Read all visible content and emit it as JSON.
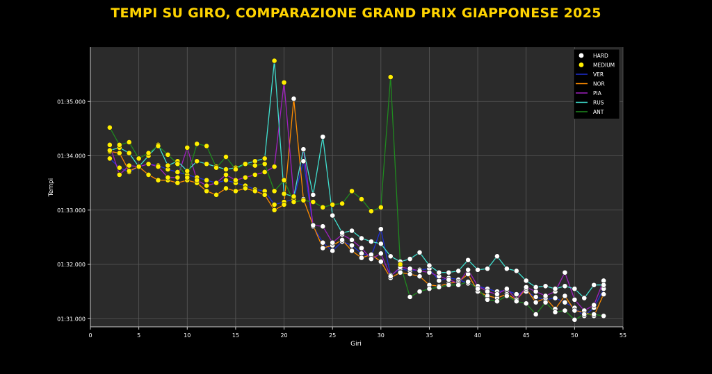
{
  "chart_data": {
    "type": "line",
    "title": "TEMPI SU GIRO, COMPARAZIONE GRAND PRIX GIAPPONESE 2025",
    "xlabel": "Giri",
    "ylabel": "Tempi",
    "xlim": [
      0,
      55
    ],
    "ylim": [
      90.85,
      96.0
    ],
    "xticks": [
      0,
      5,
      10,
      15,
      20,
      25,
      30,
      35,
      40,
      45,
      50,
      55
    ],
    "yticks": [
      {
        "value": 91,
        "label": "01:31.000"
      },
      {
        "value": 92,
        "label": "01:32.000"
      },
      {
        "value": 93,
        "label": "01:33.000"
      },
      {
        "value": 94,
        "label": "01:34.000"
      },
      {
        "value": 95,
        "label": "01:35.000"
      }
    ],
    "grid": true,
    "legend_position": "top-right",
    "legend": [
      {
        "kind": "marker",
        "label": "HARD",
        "color": "#ffffff"
      },
      {
        "kind": "marker",
        "label": "MEDIUM",
        "color": "#ffee00"
      },
      {
        "kind": "line",
        "label": "VER",
        "color": "#1e2fd6"
      },
      {
        "kind": "line",
        "label": "NOR",
        "color": "#ff8c00"
      },
      {
        "kind": "line",
        "label": "PIA",
        "color": "#a020c0"
      },
      {
        "kind": "line",
        "label": "RUS",
        "color": "#40e0d0"
      },
      {
        "kind": "line",
        "label": "ANT",
        "color": "#1f8a1f"
      }
    ],
    "series": [
      {
        "name": "VER",
        "color": "#1e2fd6",
        "hard_from_lap": 22,
        "x": [
          2,
          3,
          4,
          5,
          6,
          7,
          8,
          9,
          10,
          11,
          12,
          13,
          14,
          15,
          16,
          17,
          18,
          19,
          20,
          21,
          22,
          23,
          24,
          25,
          26,
          27,
          28,
          29,
          30,
          31,
          32,
          33,
          34,
          35,
          36,
          37,
          38,
          39,
          40,
          41,
          42,
          43,
          44,
          45,
          46,
          47,
          48,
          49,
          50,
          51,
          52,
          53
        ],
        "y": [
          93.95,
          93.78,
          93.7,
          93.8,
          93.85,
          93.82,
          93.75,
          93.7,
          93.65,
          93.6,
          93.55,
          93.5,
          93.55,
          93.5,
          93.45,
          93.38,
          93.35,
          93.1,
          93.15,
          93.2,
          93.9,
          92.7,
          92.4,
          92.25,
          92.42,
          92.35,
          92.2,
          92.15,
          92.65,
          91.8,
          91.92,
          91.88,
          91.9,
          91.92,
          91.7,
          91.75,
          91.72,
          91.65,
          91.6,
          91.55,
          91.5,
          91.52,
          91.45,
          91.5,
          91.4,
          91.35,
          91.38,
          91.3,
          91.2,
          91.05,
          91.2,
          91.55
        ]
      },
      {
        "name": "NOR",
        "color": "#ff8c00",
        "hard_from_lap": 21,
        "x": [
          2,
          3,
          4,
          5,
          6,
          7,
          8,
          9,
          10,
          11,
          12,
          13,
          14,
          15,
          16,
          17,
          18,
          19,
          20,
          21,
          22,
          23,
          24,
          25,
          26,
          27,
          28,
          29,
          30,
          31,
          32,
          33,
          34,
          35,
          36,
          37,
          38,
          39,
          40,
          41,
          42,
          43,
          44,
          45,
          46,
          47,
          48,
          49,
          50,
          51,
          52,
          53
        ],
        "y": [
          94.08,
          94.05,
          93.72,
          93.8,
          93.65,
          93.55,
          93.55,
          93.5,
          93.55,
          93.5,
          93.35,
          93.28,
          93.4,
          93.35,
          93.4,
          93.35,
          93.28,
          93.0,
          93.1,
          95.05,
          93.2,
          92.72,
          92.3,
          92.35,
          92.45,
          92.25,
          92.12,
          92.18,
          92.05,
          91.75,
          91.85,
          91.82,
          91.78,
          91.62,
          91.6,
          91.65,
          91.68,
          91.82,
          91.5,
          91.42,
          91.38,
          91.45,
          91.35,
          91.55,
          91.3,
          91.38,
          91.18,
          91.42,
          91.15,
          91.12,
          91.05,
          91.45
        ]
      },
      {
        "name": "PIA",
        "color": "#a020c0",
        "hard_from_lap": 22,
        "x": [
          2,
          3,
          4,
          5,
          6,
          7,
          8,
          9,
          10,
          11,
          12,
          13,
          14,
          15,
          16,
          17,
          18,
          19,
          20,
          21,
          22,
          23,
          24,
          25,
          26,
          27,
          28,
          29,
          30,
          31,
          32,
          33,
          34,
          35,
          36,
          37,
          38,
          39,
          40,
          41,
          42,
          43,
          44,
          45,
          46,
          47,
          48,
          49,
          50,
          51,
          52,
          53
        ],
        "y": [
          94.2,
          93.65,
          93.82,
          93.8,
          93.85,
          93.8,
          93.6,
          93.6,
          94.15,
          93.55,
          93.45,
          93.5,
          93.65,
          93.55,
          93.6,
          93.65,
          93.7,
          93.8,
          95.35,
          93.25,
          94.12,
          92.72,
          92.7,
          92.4,
          92.55,
          92.45,
          92.3,
          92.1,
          92.2,
          91.78,
          91.95,
          91.92,
          91.88,
          91.85,
          91.78,
          91.72,
          91.65,
          91.9,
          91.6,
          91.5,
          91.45,
          91.55,
          91.35,
          91.58,
          91.5,
          91.42,
          91.5,
          91.85,
          91.35,
          91.15,
          91.25,
          91.7
        ]
      },
      {
        "name": "RUS",
        "color": "#40e0d0",
        "hard_from_lap": 22,
        "x": [
          2,
          3,
          4,
          5,
          6,
          7,
          8,
          9,
          10,
          11,
          12,
          13,
          14,
          15,
          16,
          17,
          18,
          19,
          20,
          21,
          22,
          23,
          24,
          25,
          26,
          27,
          28,
          29,
          30,
          31,
          32,
          33,
          34,
          35,
          36,
          37,
          38,
          39,
          40,
          41,
          42,
          43,
          44,
          45,
          46,
          47,
          48,
          49,
          50,
          51,
          52,
          53
        ],
        "y": [
          94.1,
          94.15,
          94.05,
          93.8,
          94.0,
          94.2,
          93.82,
          93.9,
          93.72,
          93.9,
          93.85,
          93.8,
          93.75,
          93.78,
          93.85,
          93.9,
          93.95,
          95.75,
          93.3,
          93.25,
          94.12,
          93.28,
          94.35,
          92.9,
          92.58,
          92.62,
          92.48,
          92.42,
          92.38,
          92.15,
          92.05,
          92.1,
          92.22,
          91.98,
          91.85,
          91.85,
          91.88,
          92.08,
          91.9,
          91.92,
          92.15,
          91.92,
          91.88,
          91.7,
          91.58,
          91.6,
          91.55,
          91.6,
          91.55,
          91.38,
          91.62,
          91.62
        ]
      },
      {
        "name": "ANT",
        "color": "#1f8a1f",
        "hard_from_lap": 33,
        "x": [
          2,
          3,
          4,
          5,
          6,
          7,
          8,
          9,
          10,
          11,
          12,
          13,
          14,
          15,
          16,
          17,
          18,
          19,
          20,
          21,
          22,
          23,
          24,
          25,
          26,
          27,
          28,
          29,
          30,
          31,
          32,
          33,
          34,
          35,
          36,
          37,
          38,
          39,
          40,
          41,
          42,
          43,
          44,
          45,
          46,
          47,
          48,
          49,
          50,
          51,
          52,
          53
        ],
        "y": [
          94.52,
          94.2,
          94.25,
          93.95,
          94.05,
          94.18,
          94.02,
          93.85,
          93.6,
          94.22,
          94.18,
          93.78,
          93.98,
          93.75,
          93.85,
          93.82,
          93.85,
          93.35,
          93.55,
          93.15,
          93.18,
          93.15,
          93.05,
          93.1,
          93.12,
          93.35,
          93.2,
          92.98,
          93.05,
          95.45,
          92.0,
          91.4,
          91.5,
          91.55,
          91.58,
          91.62,
          91.62,
          91.68,
          91.55,
          91.35,
          91.32,
          91.42,
          91.32,
          91.28,
          91.08,
          91.3,
          91.12,
          91.15,
          90.98,
          91.08,
          91.08,
          91.05
        ]
      }
    ]
  }
}
